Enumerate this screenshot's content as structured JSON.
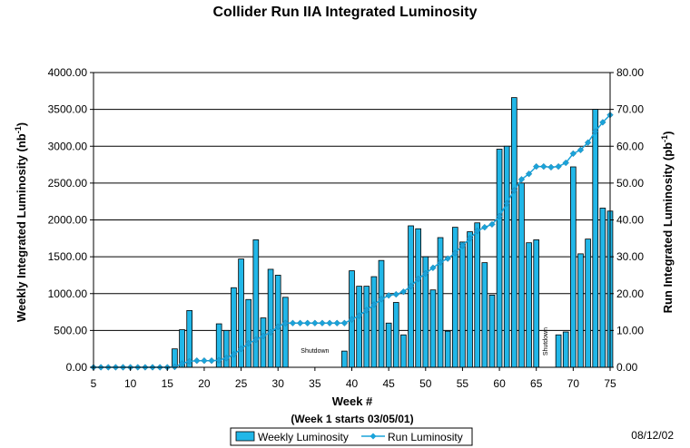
{
  "chart_data": {
    "type": "bar",
    "title": "Collider Run IIA Integrated Luminosity",
    "xlabel": "Week  #",
    "xlabel_sub": "(Week 1 starts 03/05/01)",
    "ylabel_left_pre": "Weekly Integrated Luminosity (nb",
    "ylabel_left_sup": "-1",
    "ylabel_left_post": ")",
    "ylabel_right_pre": "Run Integrated Luminosity (pb",
    "ylabel_right_sup": "-1",
    "ylabel_right_post": ")",
    "xlim": [
      5,
      75
    ],
    "ylim_left": [
      0,
      4000
    ],
    "ylim_right": [
      0,
      80
    ],
    "x_ticks": [
      "5",
      "10",
      "15",
      "20",
      "25",
      "30",
      "35",
      "40",
      "45",
      "50",
      "55",
      "60",
      "65",
      "70",
      "75"
    ],
    "y_left_ticks": [
      "0.00",
      "500.00",
      "1000.00",
      "1500.00",
      "2000.00",
      "2500.00",
      "3000.00",
      "3500.00",
      "4000.00"
    ],
    "y_right_ticks": [
      "0.00",
      "10.00",
      "20.00",
      "30.00",
      "40.00",
      "50.00",
      "60.00",
      "70.00",
      "80.00"
    ],
    "grid": true,
    "legend_position": "bottom",
    "annotations": [
      {
        "text": "Shutdown",
        "x": 35,
        "y": 200
      },
      {
        "text": "Shutdown",
        "x": 66.5,
        "y": 350,
        "rotated": true
      }
    ],
    "date_stamp": "08/12/02",
    "series": [
      {
        "name": "Weekly Luminosity",
        "kind": "bar",
        "axis": "left",
        "color": "#21B7E8",
        "x": [
          16,
          17,
          18,
          22,
          23,
          24,
          25,
          26,
          27,
          28,
          29,
          30,
          31,
          39,
          40,
          41,
          42,
          43,
          44,
          45,
          46,
          47,
          48,
          49,
          50,
          51,
          52,
          53,
          54,
          55,
          56,
          57,
          58,
          59,
          60,
          61,
          62,
          63,
          64,
          65,
          68,
          69,
          70,
          71,
          72,
          73,
          74,
          75
        ],
        "values": [
          250,
          510,
          770,
          590,
          500,
          1080,
          1470,
          920,
          1730,
          670,
          1330,
          1250,
          950,
          220,
          1310,
          1100,
          1100,
          1230,
          1450,
          600,
          880,
          440,
          1920,
          1880,
          1500,
          1050,
          1760,
          490,
          1900,
          1700,
          1840,
          1960,
          1420,
          980,
          2960,
          3000,
          3660,
          2500,
          1690,
          1730,
          440,
          480,
          2720,
          1540,
          1740,
          3500,
          2160,
          2120
        ]
      },
      {
        "name": "Run Luminosity",
        "kind": "line",
        "axis": "right",
        "color": "#1AA3DA",
        "x": [
          5,
          6,
          7,
          8,
          9,
          10,
          11,
          12,
          13,
          14,
          15,
          16,
          17,
          18,
          19,
          20,
          21,
          22,
          23,
          24,
          25,
          26,
          27,
          28,
          29,
          30,
          31,
          32,
          33,
          34,
          35,
          36,
          37,
          38,
          39,
          40,
          41,
          42,
          43,
          44,
          45,
          46,
          47,
          48,
          49,
          50,
          51,
          52,
          53,
          54,
          55,
          56,
          57,
          58,
          59,
          60,
          61,
          62,
          63,
          64,
          65,
          66,
          67,
          68,
          69,
          70,
          71,
          72,
          73,
          74,
          75
        ],
        "values": [
          0,
          0,
          0,
          0,
          0,
          0,
          0,
          0,
          0,
          0,
          0,
          0.1,
          1.0,
          1.6,
          1.8,
          1.8,
          1.8,
          1.9,
          2.5,
          3.5,
          5.0,
          6.5,
          7.5,
          8.5,
          9.5,
          11.0,
          12.0,
          12.0,
          12.0,
          12.0,
          12.0,
          12.0,
          12.0,
          12.0,
          12.0,
          13.0,
          14.0,
          15.5,
          17.0,
          18.5,
          19.5,
          19.8,
          20.5,
          22.0,
          24.0,
          25.5,
          27.0,
          28.5,
          29.5,
          31.0,
          33.0,
          35.0,
          37.0,
          38.0,
          38.8,
          41.0,
          44.5,
          48.0,
          51.0,
          52.5,
          54.5,
          54.5,
          54.3,
          54.5,
          55.5,
          58.0,
          59.0,
          61.0,
          64.0,
          66.5,
          68.5
        ]
      }
    ]
  }
}
